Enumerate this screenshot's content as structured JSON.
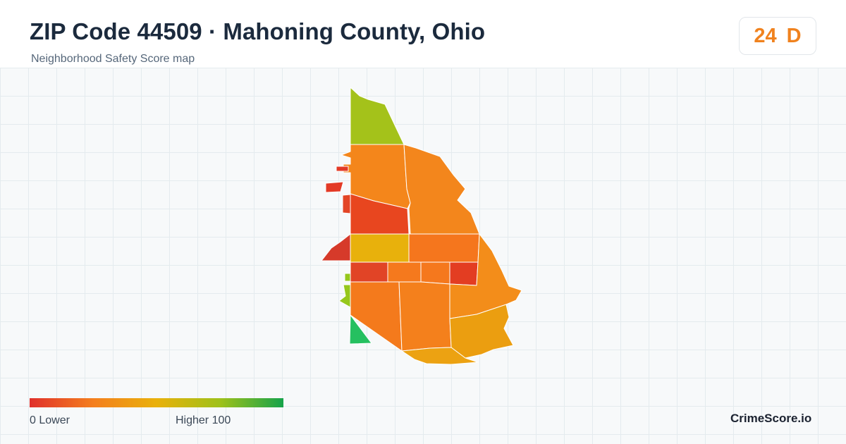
{
  "header": {
    "title": "ZIP Code 44509 · Mahoning County, Ohio",
    "subtitle": "Neighborhood Safety Score map"
  },
  "score": {
    "value": "24",
    "grade": "D",
    "color": "#f0821e"
  },
  "map": {
    "regions": [
      {
        "name": "north-tract",
        "color": "#a4c21a"
      },
      {
        "name": "northwest-tract",
        "color": "#f4861b"
      },
      {
        "name": "northeast-tract",
        "color": "#f3861c"
      },
      {
        "name": "west-upper-tract",
        "color": "#e8461f"
      },
      {
        "name": "west-middle-tract",
        "color": "#e8b10c"
      },
      {
        "name": "central-east-tract",
        "color": "#f5761d"
      },
      {
        "name": "central-block-1",
        "color": "#e14426"
      },
      {
        "name": "central-block-2",
        "color": "#f5791d"
      },
      {
        "name": "central-block-3",
        "color": "#f5781d"
      },
      {
        "name": "central-block-4",
        "color": "#e33d22"
      },
      {
        "name": "east-tract",
        "color": "#f38d1a"
      },
      {
        "name": "southwest-tract",
        "color": "#f47a1c"
      },
      {
        "name": "south-central-tract",
        "color": "#f4801c"
      },
      {
        "name": "southeast-tract",
        "color": "#eb9e10"
      },
      {
        "name": "south-tract",
        "color": "#eca212"
      },
      {
        "name": "southwest-corner-tract",
        "color": "#25c060"
      },
      {
        "name": "west-fragment-1",
        "color": "#e33a26"
      },
      {
        "name": "west-fragment-2",
        "color": "#e33a26"
      },
      {
        "name": "west-fragment-3",
        "color": "#e34526"
      },
      {
        "name": "west-fragment-4",
        "color": "#d63a2a"
      },
      {
        "name": "west-fragment-5",
        "color": "#96c71c"
      },
      {
        "name": "west-fragment-6",
        "color": "#96c71c"
      }
    ]
  },
  "legend": {
    "low_label": "0  Lower",
    "high_label": "Higher  100",
    "gradient": [
      "#e0302b",
      "#f47f1e",
      "#e9b10b",
      "#9fc11a",
      "#16a34a"
    ]
  },
  "brand": {
    "name": "CrimeScore.io"
  }
}
